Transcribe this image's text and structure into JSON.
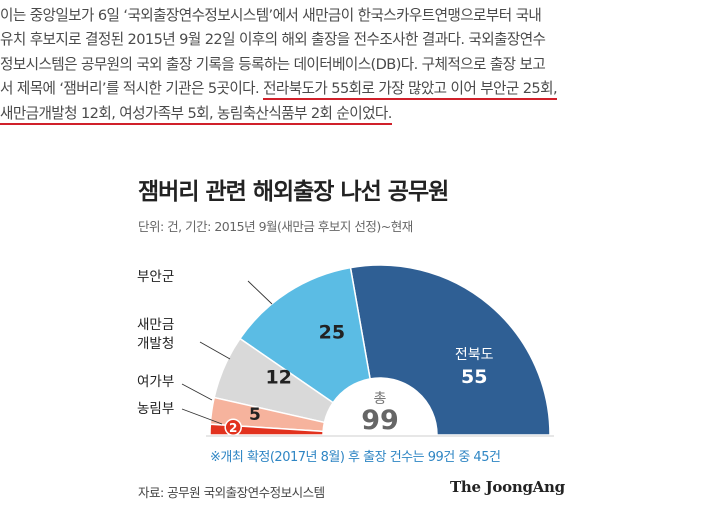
{
  "article": {
    "line1": "이는 중앙일보가 6일 ‘국외출장연수정보시스템’에서 새만금이 한국스카우트연맹으로부터 국내",
    "line2": "유치 후보지로 결정된 2015년 9월 22일 이후의 해외 출장을 전수조사한 결과다. 국외출장연수",
    "line3": "정보시스템은 공무원의 국외 출장 기록을 등록하는 데이터베이스(DB)다. 구체적으로 출장 보고",
    "line4a": "서 제목에 ‘잼버리’를 적시한 기관은 5곳이다. ",
    "line4b": "전라북도가 55회로 가장 많았고 이어 부안군 25회,",
    "line5a": "새만금개발청 12회",
    "line5b": ", 여성가족부 5회, 농림축산식품부 2회 순이었다."
  },
  "infographic": {
    "title": "잼버리 관련 해외출장 나선 공무원",
    "subtitle": "단위: 건, 기간: 2015년 9월(새만금 후보지 선정)~현재",
    "note": "※개최 확정(2017년 8월) 후 출장 건수는 99건 중 45건",
    "source": "자료: 공무원 국외출장연수정보시스템",
    "brand": "The JoongAng"
  },
  "chart_data": {
    "type": "pie",
    "shape": "semi-donut",
    "title": "잼버리 관련 해외출장 나선 공무원",
    "unit": "건",
    "total_label": "총",
    "total": 99,
    "slices": [
      {
        "label": "전북도",
        "value": 55,
        "color": "#2f5f94"
      },
      {
        "label": "부안군",
        "value": 25,
        "color": "#5bbce4"
      },
      {
        "label": "새만금 개발청",
        "label_lines": [
          "새만금",
          "개발청"
        ],
        "value": 12,
        "color": "#d9d9d9"
      },
      {
        "label": "여가부",
        "value": 5,
        "color": "#f6b39d"
      },
      {
        "label": "농림부",
        "value": 2,
        "color": "#e2321e"
      }
    ]
  }
}
